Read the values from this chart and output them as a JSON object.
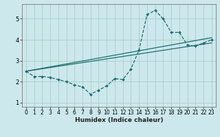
{
  "xlabel": "Humidex (Indice chaleur)",
  "bg_color": "#cce8ec",
  "grid_color": "#aacccc",
  "line_color": "#1a6e6e",
  "xlim": [
    -0.5,
    23.5
  ],
  "ylim": [
    0.8,
    5.7
  ],
  "xticks": [
    0,
    1,
    2,
    3,
    4,
    5,
    6,
    7,
    8,
    9,
    10,
    11,
    12,
    13,
    14,
    15,
    16,
    17,
    18,
    19,
    20,
    21,
    22,
    23
  ],
  "yticks": [
    1,
    2,
    3,
    4,
    5
  ],
  "curve_x": [
    0,
    1,
    2,
    3,
    4,
    5,
    6,
    7,
    8,
    9,
    10,
    11,
    12,
    13,
    14,
    15,
    16,
    17,
    18,
    19,
    20,
    21,
    22,
    23
  ],
  "curve_y": [
    2.5,
    2.25,
    2.25,
    2.2,
    2.1,
    2.0,
    1.85,
    1.75,
    1.4,
    1.6,
    1.8,
    2.15,
    2.1,
    2.6,
    3.5,
    5.2,
    5.4,
    5.0,
    4.35,
    4.35,
    3.75,
    3.7,
    3.85,
    4.0
  ],
  "line1_x": [
    0,
    23
  ],
  "line1_y": [
    2.5,
    3.85
  ],
  "line2_x": [
    0,
    23
  ],
  "line2_y": [
    2.5,
    4.1
  ],
  "xlabel_fontsize": 6.5,
  "tick_fontsize": 5.5
}
